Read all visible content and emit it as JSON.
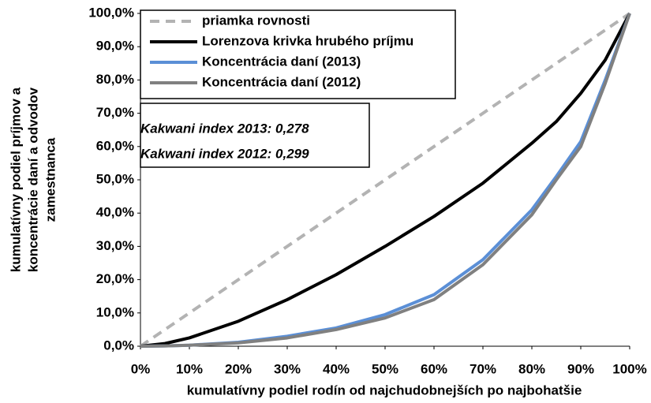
{
  "chart_data": {
    "type": "line",
    "x": [
      0,
      5,
      10,
      20,
      30,
      40,
      50,
      60,
      70,
      80,
      85,
      90,
      95,
      100
    ],
    "series": [
      {
        "name": "priamka rovnosti",
        "color": "#b3b3b3",
        "dashed": true,
        "values": [
          0,
          5,
          10,
          20,
          30,
          40,
          50,
          60,
          70,
          80,
          85,
          90,
          95,
          100
        ]
      },
      {
        "name": "Lorenzova krivka hrubého príjmu",
        "color": "#000000",
        "values": [
          0,
          0.8,
          2.5,
          7.5,
          14,
          21.5,
          30,
          39,
          49,
          61,
          67.5,
          76,
          86,
          100
        ]
      },
      {
        "name": "Koncentrácia daní (2013)",
        "color": "#5b8fd6",
        "values": [
          0,
          0.1,
          0.3,
          1.2,
          3,
          5.5,
          9.5,
          15.5,
          26,
          41,
          51,
          61.5,
          80,
          100
        ]
      },
      {
        "name": "Koncentrácia daní (2012)",
        "color": "#808080",
        "values": [
          0,
          0.1,
          0.3,
          1,
          2.5,
          5,
          8.5,
          14,
          24.5,
          39.5,
          50,
          60,
          79,
          100
        ]
      }
    ],
    "xlabel": "kumulatívny podiel rodín od najchudobnejších po najbohatšie",
    "ylabel": [
      "kumulatívny podiel príjmov a",
      "koncentrácie daní a odvodov",
      "zamestnanca"
    ],
    "annotations": [
      "Kakwani index 2013: 0,278",
      "Kakwani index 2012: 0,299"
    ],
    "xlim": [
      0,
      100
    ],
    "ylim": [
      0,
      100
    ],
    "xticks": [
      {
        "value": 0,
        "label": "0%"
      },
      {
        "value": 10,
        "label": "10%"
      },
      {
        "value": 20,
        "label": "20%"
      },
      {
        "value": 30,
        "label": "30%"
      },
      {
        "value": 40,
        "label": "40%"
      },
      {
        "value": 50,
        "label": "50%"
      },
      {
        "value": 60,
        "label": "60%"
      },
      {
        "value": 70,
        "label": "70%"
      },
      {
        "value": 80,
        "label": "80%"
      },
      {
        "value": 90,
        "label": "90%"
      },
      {
        "value": 100,
        "label": "100%"
      }
    ],
    "yticks": [
      {
        "value": 0,
        "label": "0,0%"
      },
      {
        "value": 10,
        "label": "10,0%"
      },
      {
        "value": 20,
        "label": "20,0%"
      },
      {
        "value": 30,
        "label": "30,0%"
      },
      {
        "value": 40,
        "label": "40,0%"
      },
      {
        "value": 50,
        "label": "50,0%"
      },
      {
        "value": 60,
        "label": "60,0%"
      },
      {
        "value": 70,
        "label": "70,0%"
      },
      {
        "value": 80,
        "label": "80,0%"
      },
      {
        "value": 90,
        "label": "90,0%"
      },
      {
        "value": 100,
        "label": "100,0%"
      }
    ]
  }
}
